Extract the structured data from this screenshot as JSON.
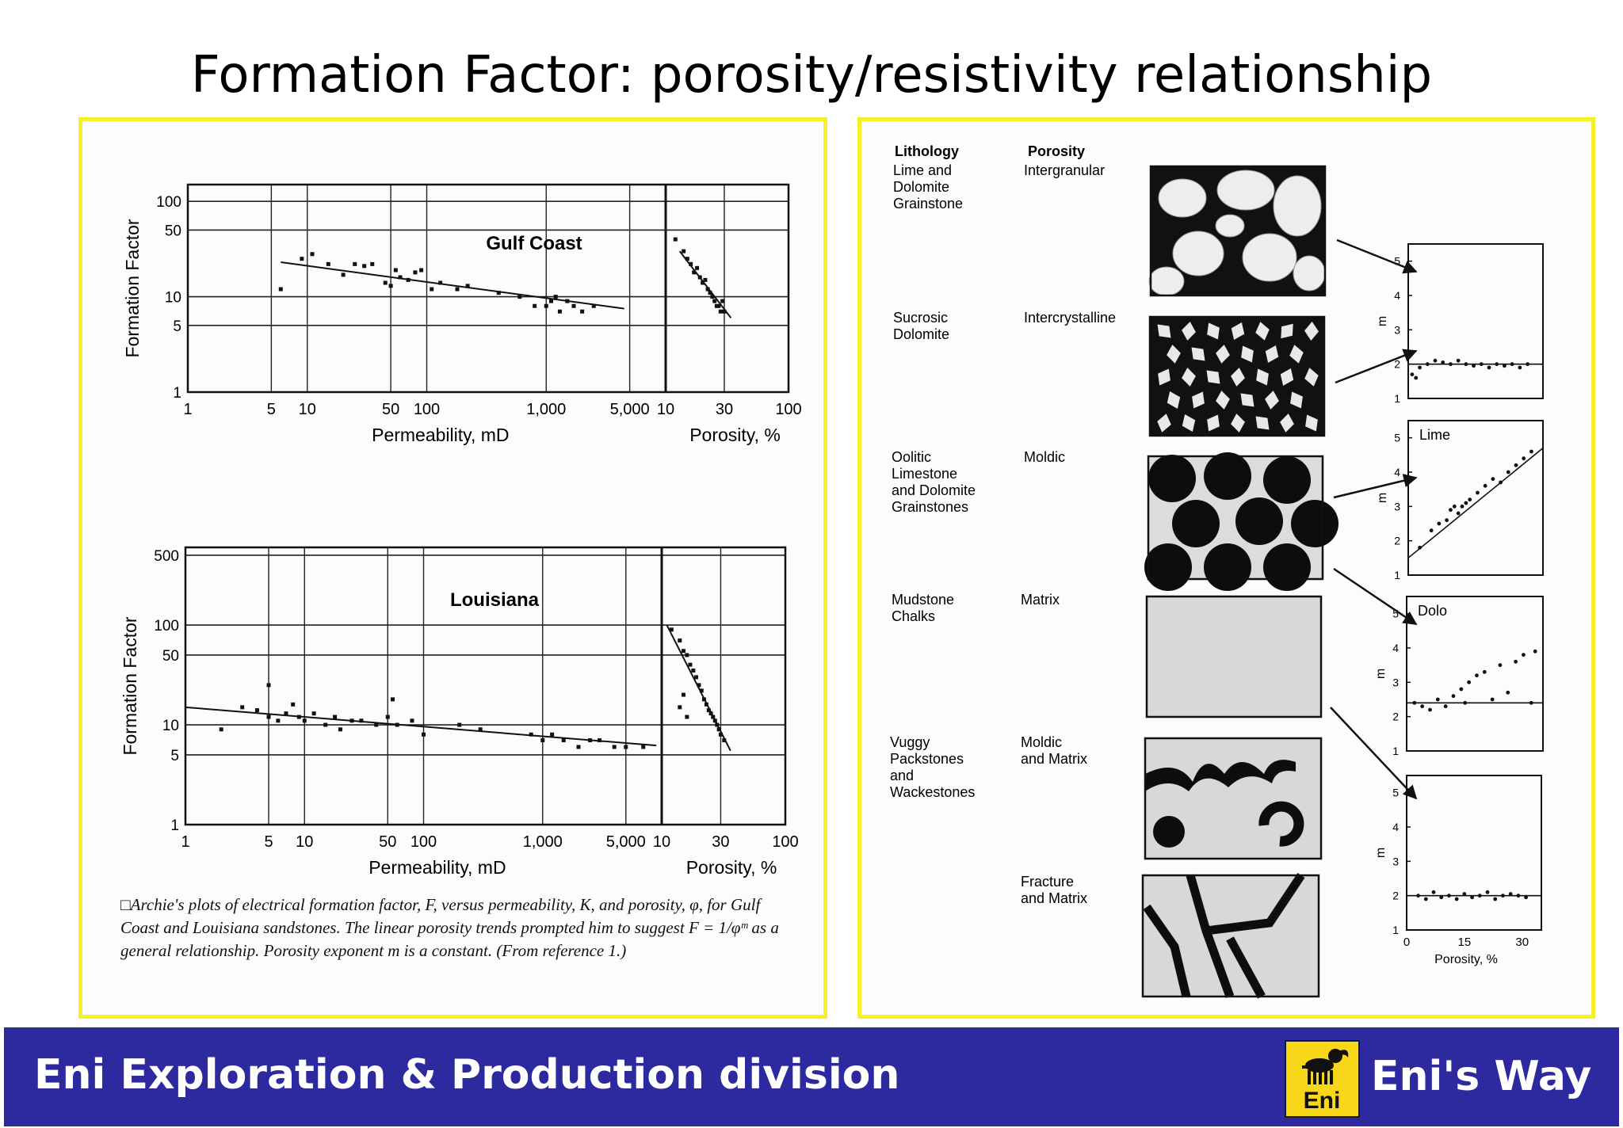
{
  "slide": {
    "title": "Formation Factor: porosity/resistivity relationship"
  },
  "footer": {
    "division": "Eni Exploration & Production division",
    "logo_text": "Eni",
    "brand": "Eni's Way",
    "background": "#2c2a9e",
    "logo_color": "#f7d717"
  },
  "panel_border_color": "#f4f02a",
  "left_panel": {
    "caption": "□Archie's plots of electrical formation factor, F, versus permeability, K, and porosity, φ, for Gulf Coast and Louisiana sandstones. The linear porosity trends prompted him to suggest F = 1/φᵐ as a general relationship. Porosity exponent m is a constant. (From reference 1.)"
  },
  "chart_data": [
    {
      "type": "scatter",
      "title": "Gulf Coast",
      "ylabel": "Formation Factor",
      "xlabel_left": "Permeability, mD",
      "xlabel_right": "Porosity, %",
      "y_ticks": [
        "100",
        "50",
        "10",
        "5",
        "1"
      ],
      "y_tick_values": [
        100,
        50,
        10,
        5,
        1
      ],
      "perm_ticks": [
        "1",
        "5",
        "10",
        "50",
        "100",
        "1,000",
        "5,000"
      ],
      "perm_tick_values": [
        1,
        5,
        10,
        50,
        100,
        1000,
        5000
      ],
      "poro_ticks": [
        "10",
        "30",
        "100"
      ],
      "poro_tick_values": [
        10,
        30,
        100
      ],
      "ylim": [
        1,
        150
      ],
      "permeability_points": [
        [
          6,
          12
        ],
        [
          9,
          25
        ],
        [
          11,
          28
        ],
        [
          15,
          22
        ],
        [
          20,
          17
        ],
        [
          25,
          22
        ],
        [
          30,
          21
        ],
        [
          35,
          22
        ],
        [
          45,
          14
        ],
        [
          50,
          13
        ],
        [
          55,
          19
        ],
        [
          60,
          16
        ],
        [
          70,
          15
        ],
        [
          80,
          18
        ],
        [
          90,
          19
        ],
        [
          110,
          12
        ],
        [
          130,
          14
        ],
        [
          180,
          12
        ],
        [
          220,
          13
        ],
        [
          400,
          11
        ],
        [
          600,
          10
        ],
        [
          800,
          8
        ],
        [
          1000,
          8
        ],
        [
          1100,
          9
        ],
        [
          1200,
          10
        ],
        [
          1300,
          7
        ],
        [
          1500,
          9
        ],
        [
          1700,
          8
        ],
        [
          2000,
          7
        ],
        [
          2500,
          8
        ]
      ],
      "permeability_trend": [
        [
          6,
          23
        ],
        [
          4500,
          7.5
        ]
      ],
      "porosity_points": [
        [
          12,
          40
        ],
        [
          14,
          30
        ],
        [
          15,
          25
        ],
        [
          16,
          22
        ],
        [
          17,
          18
        ],
        [
          18,
          20
        ],
        [
          19,
          16
        ],
        [
          20,
          14
        ],
        [
          21,
          15
        ],
        [
          22,
          12
        ],
        [
          23,
          11
        ],
        [
          24,
          10
        ],
        [
          25,
          9
        ],
        [
          26,
          8
        ],
        [
          27,
          8
        ],
        [
          28,
          7
        ],
        [
          29,
          9
        ],
        [
          30,
          7
        ]
      ],
      "porosity_trend": [
        [
          13,
          30
        ],
        [
          34,
          6
        ]
      ]
    },
    {
      "type": "scatter",
      "title": "Louisiana",
      "ylabel": "Formation Factor",
      "xlabel_left": "Permeability, mD",
      "xlabel_right": "Porosity, %",
      "y_ticks": [
        "500",
        "100",
        "50",
        "10",
        "5",
        "1"
      ],
      "y_tick_values": [
        500,
        100,
        50,
        10,
        5,
        1
      ],
      "perm_ticks": [
        "1",
        "5",
        "10",
        "50",
        "100",
        "1,000",
        "5,000"
      ],
      "perm_tick_values": [
        1,
        5,
        10,
        50,
        100,
        1000,
        5000
      ],
      "poro_ticks": [
        "10",
        "30",
        "100"
      ],
      "poro_tick_values": [
        10,
        30,
        100
      ],
      "ylim": [
        1,
        600
      ],
      "permeability_points": [
        [
          2,
          9
        ],
        [
          3,
          15
        ],
        [
          4,
          14
        ],
        [
          5,
          12
        ],
        [
          5,
          25
        ],
        [
          6,
          11
        ],
        [
          7,
          13
        ],
        [
          8,
          16
        ],
        [
          9,
          12
        ],
        [
          10,
          11
        ],
        [
          12,
          13
        ],
        [
          15,
          10
        ],
        [
          18,
          12
        ],
        [
          20,
          9
        ],
        [
          25,
          11
        ],
        [
          30,
          11
        ],
        [
          40,
          10
        ],
        [
          50,
          12
        ],
        [
          55,
          18
        ],
        [
          60,
          10
        ],
        [
          80,
          11
        ],
        [
          100,
          8
        ],
        [
          200,
          10
        ],
        [
          300,
          9
        ],
        [
          800,
          8
        ],
        [
          1000,
          7
        ],
        [
          1200,
          8
        ],
        [
          1500,
          7
        ],
        [
          2000,
          6
        ],
        [
          2500,
          7
        ],
        [
          3000,
          7
        ],
        [
          4000,
          6
        ],
        [
          5000,
          6
        ],
        [
          7000,
          6
        ]
      ],
      "permeability_trend": [
        [
          1,
          15
        ],
        [
          9000,
          6.2
        ]
      ],
      "porosity_points": [
        [
          12,
          90
        ],
        [
          14,
          70
        ],
        [
          15,
          55
        ],
        [
          16,
          50
        ],
        [
          17,
          40
        ],
        [
          18,
          35
        ],
        [
          19,
          30
        ],
        [
          20,
          25
        ],
        [
          21,
          22
        ],
        [
          22,
          18
        ],
        [
          23,
          16
        ],
        [
          24,
          14
        ],
        [
          25,
          13
        ],
        [
          26,
          12
        ],
        [
          27,
          11
        ],
        [
          28,
          10
        ],
        [
          29,
          9
        ],
        [
          30,
          8
        ],
        [
          32,
          7
        ],
        [
          14,
          15
        ],
        [
          15,
          20
        ],
        [
          16,
          12
        ]
      ],
      "porosity_trend": [
        [
          11,
          100
        ],
        [
          36,
          5.5
        ]
      ]
    },
    {
      "type": "scatter",
      "title": "",
      "ylabel": "m",
      "ylim": [
        1,
        5.5
      ],
      "y_ticks": [
        "5",
        "4",
        "3",
        "2",
        "1"
      ],
      "xlim": [
        0,
        35
      ],
      "points": [
        [
          1,
          1.7
        ],
        [
          2,
          1.6
        ],
        [
          3,
          1.9
        ],
        [
          5,
          2.0
        ],
        [
          7,
          2.1
        ],
        [
          9,
          2.05
        ],
        [
          11,
          2.0
        ],
        [
          13,
          2.1
        ],
        [
          15,
          2.0
        ],
        [
          17,
          1.95
        ],
        [
          19,
          2.0
        ],
        [
          21,
          1.9
        ],
        [
          23,
          2.0
        ],
        [
          25,
          1.95
        ],
        [
          27,
          2.0
        ],
        [
          29,
          1.9
        ],
        [
          31,
          2.0
        ]
      ],
      "trend": [
        [
          0,
          2.0
        ],
        [
          35,
          2.0
        ]
      ]
    },
    {
      "type": "scatter",
      "title": "Lime",
      "ylabel": "m",
      "ylim": [
        1,
        5.5
      ],
      "y_ticks": [
        "5",
        "4",
        "3",
        "2",
        "1"
      ],
      "xlim": [
        0,
        35
      ],
      "points": [
        [
          3,
          1.8
        ],
        [
          6,
          2.3
        ],
        [
          8,
          2.5
        ],
        [
          10,
          2.6
        ],
        [
          11,
          2.9
        ],
        [
          12,
          3.0
        ],
        [
          13,
          2.8
        ],
        [
          14,
          3.0
        ],
        [
          15,
          3.1
        ],
        [
          16,
          3.2
        ],
        [
          18,
          3.4
        ],
        [
          20,
          3.6
        ],
        [
          22,
          3.8
        ],
        [
          24,
          3.7
        ],
        [
          26,
          4.0
        ],
        [
          28,
          4.2
        ],
        [
          30,
          4.4
        ],
        [
          32,
          4.6
        ]
      ],
      "trend": [
        [
          0,
          1.5
        ],
        [
          35,
          4.7
        ]
      ]
    },
    {
      "type": "scatter",
      "title": "Dolo",
      "ylabel": "m",
      "ylim": [
        1,
        5.5
      ],
      "y_ticks": [
        "5",
        "4",
        "3",
        "2",
        "1"
      ],
      "xlim": [
        0,
        35
      ],
      "points": [
        [
          2,
          2.4
        ],
        [
          4,
          2.3
        ],
        [
          6,
          2.2
        ],
        [
          8,
          2.5
        ],
        [
          10,
          2.3
        ],
        [
          12,
          2.6
        ],
        [
          14,
          2.8
        ],
        [
          15,
          2.4
        ],
        [
          16,
          3.0
        ],
        [
          18,
          3.2
        ],
        [
          20,
          3.3
        ],
        [
          22,
          2.5
        ],
        [
          24,
          3.5
        ],
        [
          26,
          2.7
        ],
        [
          28,
          3.6
        ],
        [
          30,
          3.8
        ],
        [
          32,
          2.4
        ],
        [
          33,
          3.9
        ]
      ],
      "trend": [
        [
          0,
          2.4
        ],
        [
          35,
          2.4
        ]
      ]
    },
    {
      "type": "scatter",
      "title": "",
      "ylabel": "m",
      "xlabel": "Porosity, %",
      "ylim": [
        1,
        5.5
      ],
      "y_ticks": [
        "5",
        "4",
        "3",
        "2",
        "1"
      ],
      "x_ticks": [
        "0",
        "15",
        "30"
      ],
      "x_tick_values": [
        0,
        15,
        30
      ],
      "xlim": [
        0,
        35
      ],
      "points": [
        [
          3,
          2.0
        ],
        [
          5,
          1.9
        ],
        [
          7,
          2.1
        ],
        [
          9,
          1.95
        ],
        [
          11,
          2.0
        ],
        [
          13,
          1.9
        ],
        [
          15,
          2.05
        ],
        [
          17,
          1.95
        ],
        [
          19,
          2.0
        ],
        [
          21,
          2.1
        ],
        [
          23,
          1.9
        ],
        [
          25,
          2.0
        ],
        [
          27,
          2.05
        ],
        [
          29,
          2.0
        ],
        [
          31,
          1.95
        ]
      ],
      "trend": [
        [
          0,
          2.0
        ],
        [
          35,
          2.0
        ]
      ]
    }
  ],
  "lithology_table": {
    "header_lithology": "Lithology",
    "header_porosity": "Porosity",
    "rows": [
      {
        "lithology": [
          "Lime and",
          "Dolomite",
          "Grainstone"
        ],
        "porosity": [
          "Intergranular"
        ],
        "texture": "ovals"
      },
      {
        "lithology": [
          "Sucrosic",
          "Dolomite"
        ],
        "porosity": [
          "Intercrystalline"
        ],
        "texture": "diamonds"
      },
      {
        "lithology": [
          "Oolitic",
          "Limestone",
          "and Dolomite",
          "Grainstones"
        ],
        "porosity": [
          "Moldic"
        ],
        "texture": "circles"
      },
      {
        "lithology": [
          "Mudstone",
          "Chalks"
        ],
        "porosity": [
          "Matrix"
        ],
        "texture": "speckle"
      },
      {
        "lithology": [
          "Vuggy",
          "Packstones",
          "and",
          "Wackestones"
        ],
        "porosity": [
          "Moldic",
          "and Matrix"
        ],
        "texture": "vugs"
      },
      {
        "lithology": [],
        "porosity": [
          "Fracture",
          "and Matrix"
        ],
        "texture": "fractures"
      }
    ]
  }
}
